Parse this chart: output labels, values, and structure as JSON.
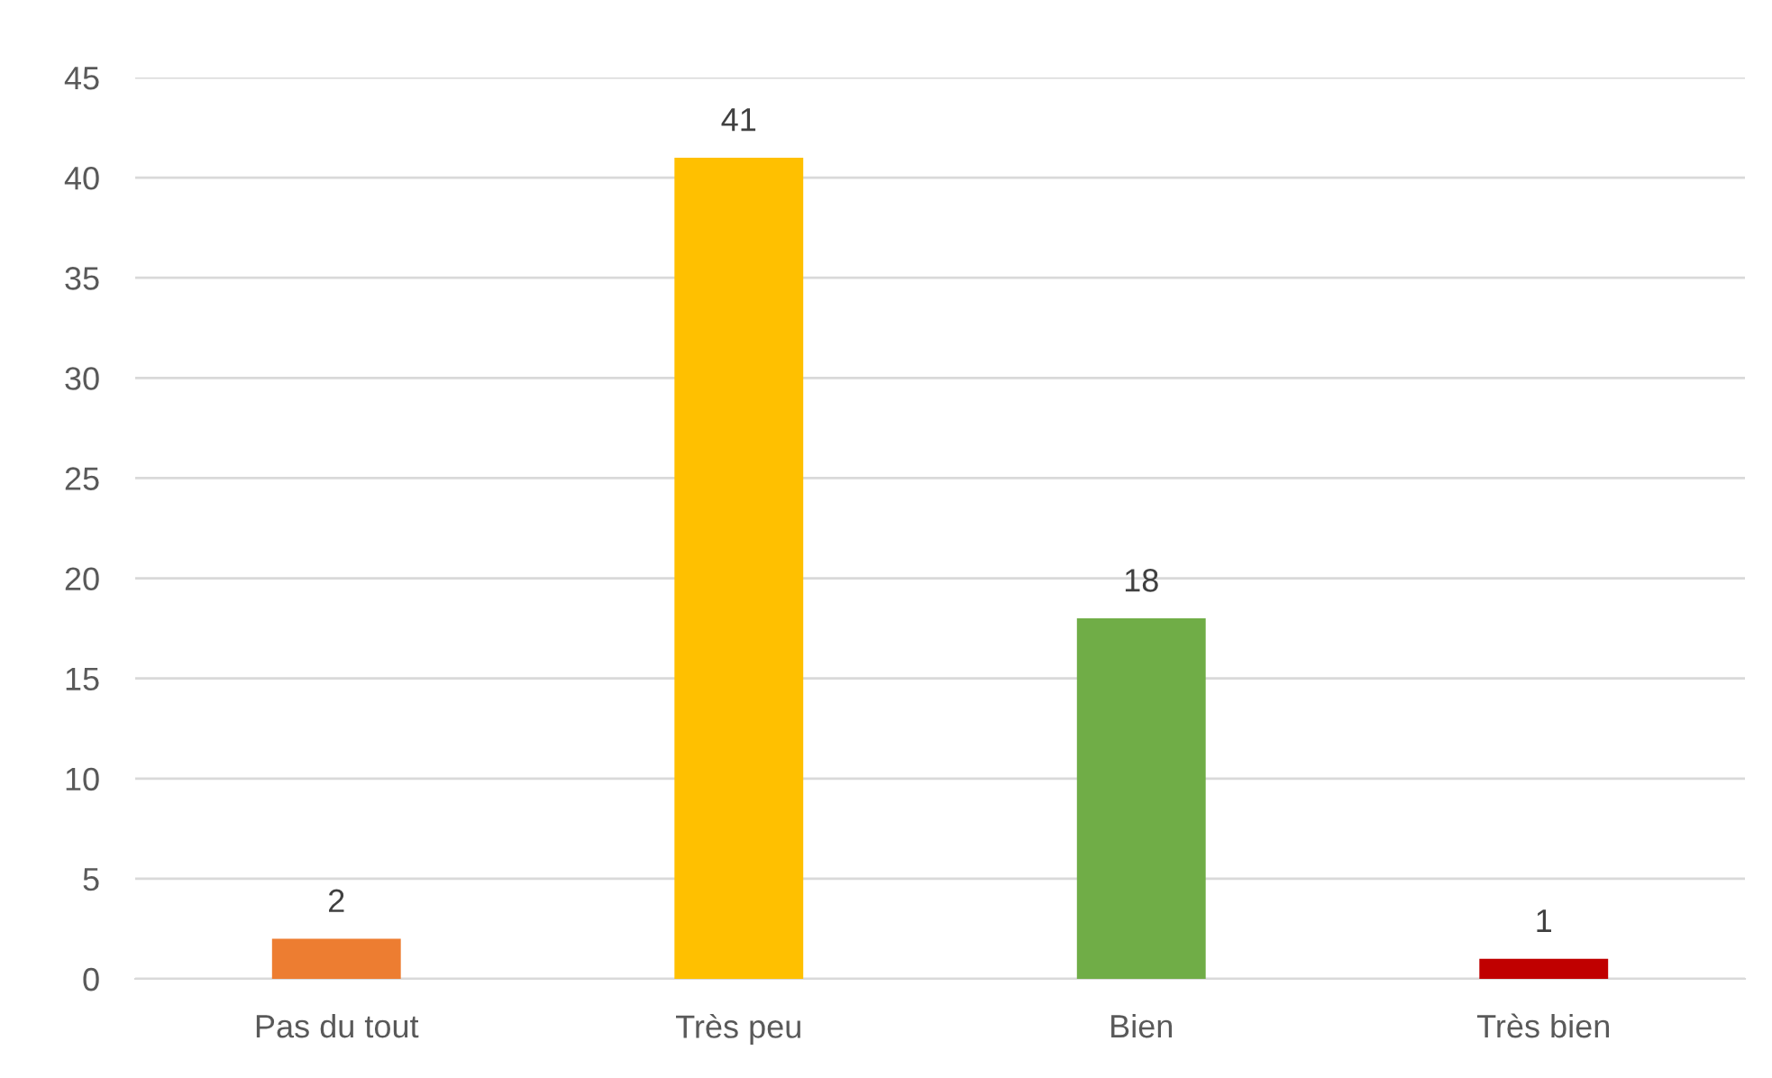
{
  "chart_data": {
    "type": "bar",
    "categories": [
      "Pas du tout",
      "Très peu",
      "Bien",
      "Très bien"
    ],
    "values": [
      2,
      41,
      18,
      1
    ],
    "colors": [
      "#ed7d31",
      "#ffc000",
      "#70ad47",
      "#c00000"
    ],
    "ylim": [
      0,
      45
    ],
    "yticks": [
      0,
      5,
      10,
      15,
      20,
      25,
      30,
      35,
      40,
      45
    ],
    "grid": "y",
    "data_labels": true,
    "legend": false
  }
}
